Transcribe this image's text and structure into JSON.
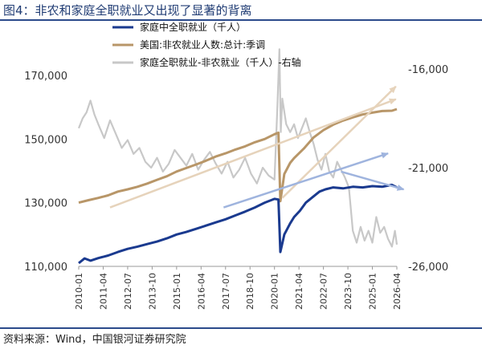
{
  "header": {
    "title": "图4：非农和家庭全职就业又出现了显著的背离"
  },
  "footer": {
    "source": "资料来源：Wind，中国银河证券研究院"
  },
  "colors": {
    "household": "#1a3a8f",
    "payrolls": "#b89668",
    "diff": "#c8c8c8",
    "arrow_tan": "#e6d3bb",
    "arrow_blue": "#9fb4de",
    "rule": "#2b4a8b"
  },
  "chart_data": {
    "type": "line",
    "x_ticks": [
      "2010-01",
      "2011-04",
      "2012-07",
      "2013-10",
      "2015-01",
      "2016-04",
      "2017-07",
      "2018-10",
      "2020-01",
      "2021-04",
      "2022-07",
      "2023-10",
      "2025-01",
      "2026-04"
    ],
    "x_range": [
      2010.0,
      2026.25
    ],
    "y_left": {
      "ticks": [
        "110,000",
        "130,000",
        "150,000",
        "170,000"
      ],
      "range": [
        110000,
        172000
      ]
    },
    "y_right": {
      "ticks": [
        "-16,000",
        "-21,000",
        "-26,000"
      ],
      "range": [
        -26000,
        -16000
      ]
    },
    "legend": [
      "家庭中全职就业（千人）",
      "美国:非农就业人数:总计:季调",
      "家庭全职就业-非农就业（千人）-右轴"
    ],
    "series": [
      {
        "name": "家庭中全职就业（千人）",
        "axis": "left",
        "x": [
          2010.0,
          2010.3,
          2010.6,
          2011.0,
          2011.5,
          2012.0,
          2012.5,
          2013.0,
          2013.5,
          2014.0,
          2014.5,
          2015.0,
          2015.5,
          2016.0,
          2016.5,
          2017.0,
          2017.5,
          2018.0,
          2018.5,
          2019.0,
          2019.5,
          2020.0,
          2020.2,
          2020.3,
          2020.5,
          2020.8,
          2021.0,
          2021.3,
          2021.6,
          2022.0,
          2022.3,
          2022.6,
          2023.0,
          2023.5,
          2024.0,
          2024.5,
          2025.0,
          2025.5,
          2026.0,
          2026.25
        ],
        "y": [
          111000,
          112500,
          111800,
          112600,
          113400,
          114500,
          115500,
          116200,
          117000,
          117800,
          118800,
          120000,
          120800,
          121800,
          122800,
          123800,
          124800,
          126000,
          127200,
          128500,
          130000,
          131200,
          131000,
          114500,
          120000,
          123500,
          125500,
          127500,
          130000,
          132000,
          133500,
          134200,
          134800,
          134500,
          135000,
          134800,
          135200,
          135000,
          135600,
          134800
        ]
      },
      {
        "name": "美国:非农就业人数:总计:季调",
        "axis": "left",
        "x": [
          2010.0,
          2010.5,
          2011.0,
          2011.5,
          2012.0,
          2012.5,
          2013.0,
          2013.5,
          2014.0,
          2014.5,
          2015.0,
          2015.5,
          2016.0,
          2016.5,
          2017.0,
          2017.5,
          2018.0,
          2018.5,
          2019.0,
          2019.5,
          2020.0,
          2020.2,
          2020.3,
          2020.5,
          2020.8,
          2021.0,
          2021.5,
          2022.0,
          2022.5,
          2023.0,
          2023.5,
          2024.0,
          2024.5,
          2025.0,
          2025.5,
          2026.0,
          2026.25
        ],
        "y": [
          130000,
          130800,
          131500,
          132300,
          133500,
          134200,
          135000,
          136000,
          137200,
          138300,
          139800,
          140900,
          142000,
          143200,
          144500,
          145500,
          146700,
          147700,
          149000,
          150000,
          151500,
          152000,
          130500,
          139000,
          142500,
          144000,
          147000,
          150500,
          152800,
          154500,
          155800,
          156800,
          157700,
          158300,
          158800,
          158900,
          159400
        ]
      },
      {
        "name": "家庭全职就业-非农就业（千人）-右轴",
        "axis": "right",
        "x": [
          2010.0,
          2010.2,
          2010.4,
          2010.6,
          2010.8,
          2011.0,
          2011.3,
          2011.6,
          2011.9,
          2012.2,
          2012.5,
          2012.8,
          2013.1,
          2013.4,
          2013.7,
          2014.0,
          2014.3,
          2014.6,
          2014.9,
          2015.2,
          2015.5,
          2015.8,
          2016.1,
          2016.4,
          2016.7,
          2017.0,
          2017.3,
          2017.6,
          2017.9,
          2018.2,
          2018.5,
          2018.8,
          2019.1,
          2019.4,
          2019.7,
          2020.0,
          2020.15,
          2020.25,
          2020.32,
          2020.4,
          2020.6,
          2020.8,
          2021.0,
          2021.2,
          2021.4,
          2021.6,
          2021.8,
          2022.0,
          2022.2,
          2022.4,
          2022.6,
          2022.8,
          2023.0,
          2023.2,
          2023.4,
          2023.6,
          2023.8,
          2024.0,
          2024.2,
          2024.4,
          2024.6,
          2024.8,
          2025.0,
          2025.2,
          2025.4,
          2025.6,
          2025.8,
          2026.0,
          2026.15,
          2026.25
        ],
        "y": [
          -19000,
          -18500,
          -18200,
          -17600,
          -18300,
          -18800,
          -19500,
          -18600,
          -19300,
          -20000,
          -19600,
          -20300,
          -20000,
          -20700,
          -21000,
          -20500,
          -21200,
          -20800,
          -20100,
          -20500,
          -20900,
          -20300,
          -21100,
          -20600,
          -20200,
          -20800,
          -21300,
          -20700,
          -21500,
          -21100,
          -20500,
          -21300,
          -21800,
          -21000,
          -21400,
          -21600,
          -17900,
          -15000,
          -19200,
          -17500,
          -18800,
          -19200,
          -18800,
          -19500,
          -19000,
          -18500,
          -19200,
          -19800,
          -20600,
          -21100,
          -20300,
          -21200,
          -21500,
          -20700,
          -21100,
          -21500,
          -22000,
          -24200,
          -24800,
          -24000,
          -24700,
          -24200,
          -24800,
          -23500,
          -24300,
          -24000,
          -24600,
          -25000,
          -24200,
          -24900
        ]
      }
    ],
    "arrows": [
      {
        "color": "tan",
        "from": [
          2020.4,
          131500
        ],
        "to": [
          2026.2,
          166500
        ],
        "axis": "left"
      },
      {
        "color": "tan",
        "from": [
          2011.6,
          128500
        ],
        "to": [
          2026.2,
          162500
        ],
        "axis": "left"
      },
      {
        "color": "blue",
        "from": [
          2017.4,
          128500
        ],
        "to": [
          2025.8,
          145500
        ],
        "axis": "left"
      },
      {
        "color": "blue",
        "from": [
          2023.4,
          -21200
        ],
        "to": [
          2026.6,
          -22100
        ],
        "axis": "right"
      }
    ]
  }
}
